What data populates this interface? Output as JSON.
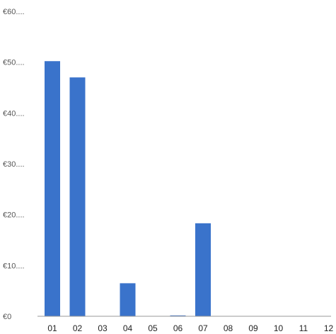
{
  "chart_data": {
    "type": "bar",
    "title": "",
    "xlabel": "",
    "ylabel": "",
    "categories": [
      "01",
      "02",
      "03",
      "04",
      "05",
      "06",
      "07",
      "08",
      "09",
      "10",
      "11",
      "12"
    ],
    "values": [
      50.2,
      47.0,
      0,
      6.5,
      0,
      0.1,
      18.3,
      0,
      0,
      0,
      0,
      0
    ],
    "ylim": [
      0,
      60
    ],
    "y_ticks": [
      0,
      10,
      20,
      30,
      40,
      50,
      60
    ],
    "y_tick_labels": [
      "€0",
      "€10....",
      "€20....",
      "€30....",
      "€40....",
      "€50....",
      "€60...."
    ],
    "grid": false,
    "colors": {
      "bar": "#3a73cb",
      "axis": "#9a9a9a",
      "tick_text": "#555555",
      "category_text": "#222222"
    }
  }
}
